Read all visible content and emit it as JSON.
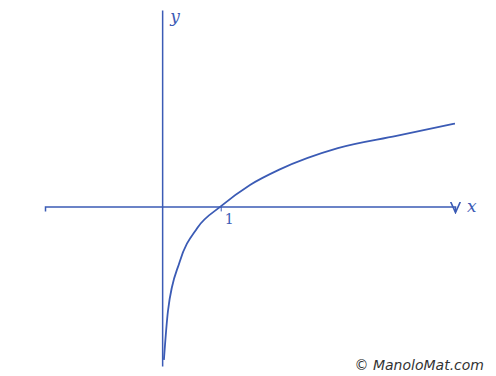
{
  "chart_data": {
    "type": "line",
    "x": [
      0.03,
      0.1,
      0.3,
      0.6,
      1,
      1.5,
      2,
      3,
      4,
      5
    ],
    "values": [
      -2.5,
      -1.7,
      -0.9,
      -0.35,
      0,
      0.35,
      0.6,
      0.95,
      1.15,
      1.35
    ],
    "x_label": "x",
    "y_label": "y",
    "xlim": [
      -2,
      5
    ],
    "ylim": [
      -2.6,
      3.2
    ],
    "xticks": [
      1
    ],
    "yticks": [],
    "tick_labels": "x",
    "grid": false,
    "color": "#3b5bb5",
    "annotations": [
      "© ManoloMat.com"
    ]
  }
}
